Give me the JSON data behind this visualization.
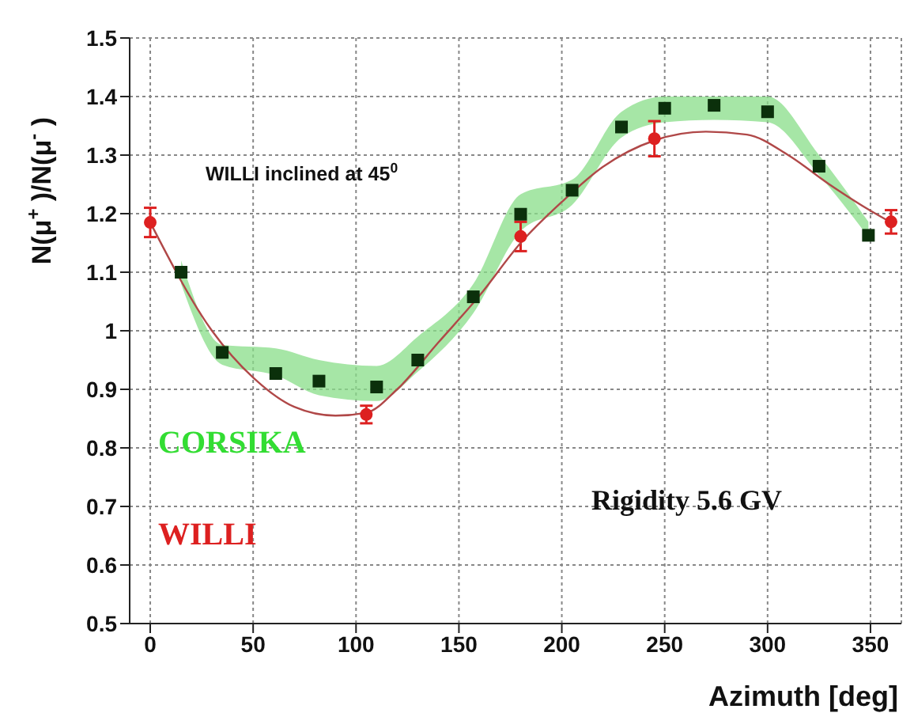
{
  "chart_data": {
    "type": "scatter",
    "xlabel": "Azimuth [deg]",
    "ylabel": "N(μ$^{+}$)/N(μ$^{-}$)",
    "annotations": [
      "WILLI inclined at 45$^{0}$",
      "Rigidity 5.6 GV"
    ],
    "xlim": [
      -10,
      365
    ],
    "xticks": [
      0,
      50,
      100,
      150,
      200,
      250,
      300,
      350
    ],
    "ylim": [
      0.5,
      1.5
    ],
    "yticks": [
      0.5,
      0.6,
      0.7,
      0.8,
      0.9,
      1,
      1.1,
      1.2,
      1.3,
      1.4,
      1.5
    ],
    "grid": true,
    "legend": "bottom left",
    "series": [
      {
        "name": "CORSIKA",
        "color": "#0b300b",
        "marker": "square",
        "x": [
          15,
          35,
          61,
          82,
          110,
          130,
          157,
          180,
          205,
          229,
          250,
          274,
          300,
          325,
          349
        ],
        "values": [
          1.1,
          0.963,
          0.927,
          0.914,
          0.904,
          0.95,
          1.058,
          1.199,
          1.24,
          1.348,
          1.38,
          1.385,
          1.374,
          1.281,
          1.163
        ],
        "lower": [
          1.08,
          0.942,
          0.924,
          0.89,
          0.88,
          0.93,
          1.03,
          1.17,
          1.215,
          1.33,
          1.356,
          1.36,
          1.356,
          1.266,
          1.16
        ],
        "upper": [
          1.12,
          0.976,
          0.97,
          0.95,
          0.94,
          0.99,
          1.08,
          1.233,
          1.258,
          1.374,
          1.4,
          1.4,
          1.4,
          1.3,
          1.186
        ]
      },
      {
        "name": "WILLI",
        "color": "#dd2020",
        "marker": "circle",
        "x": [
          0,
          105,
          180,
          245,
          360
        ],
        "values": [
          1.185,
          0.857,
          1.161,
          1.328,
          1.186
        ],
        "errors": [
          0.025,
          0.015,
          0.025,
          0.03,
          0.02
        ]
      },
      {
        "type": "line",
        "color": "#b04848",
        "marker": "none",
        "x": [
          0,
          30,
          50,
          70,
          90,
          105,
          120,
          140,
          160,
          180,
          200,
          220,
          245,
          270,
          290,
          310,
          330,
          350,
          360
        ],
        "values": [
          1.185,
          1.0,
          0.92,
          0.87,
          0.855,
          0.86,
          0.9,
          0.98,
          1.06,
          1.15,
          1.22,
          1.28,
          1.325,
          1.34,
          1.335,
          1.3,
          1.25,
          1.205,
          1.185
        ]
      }
    ]
  }
}
